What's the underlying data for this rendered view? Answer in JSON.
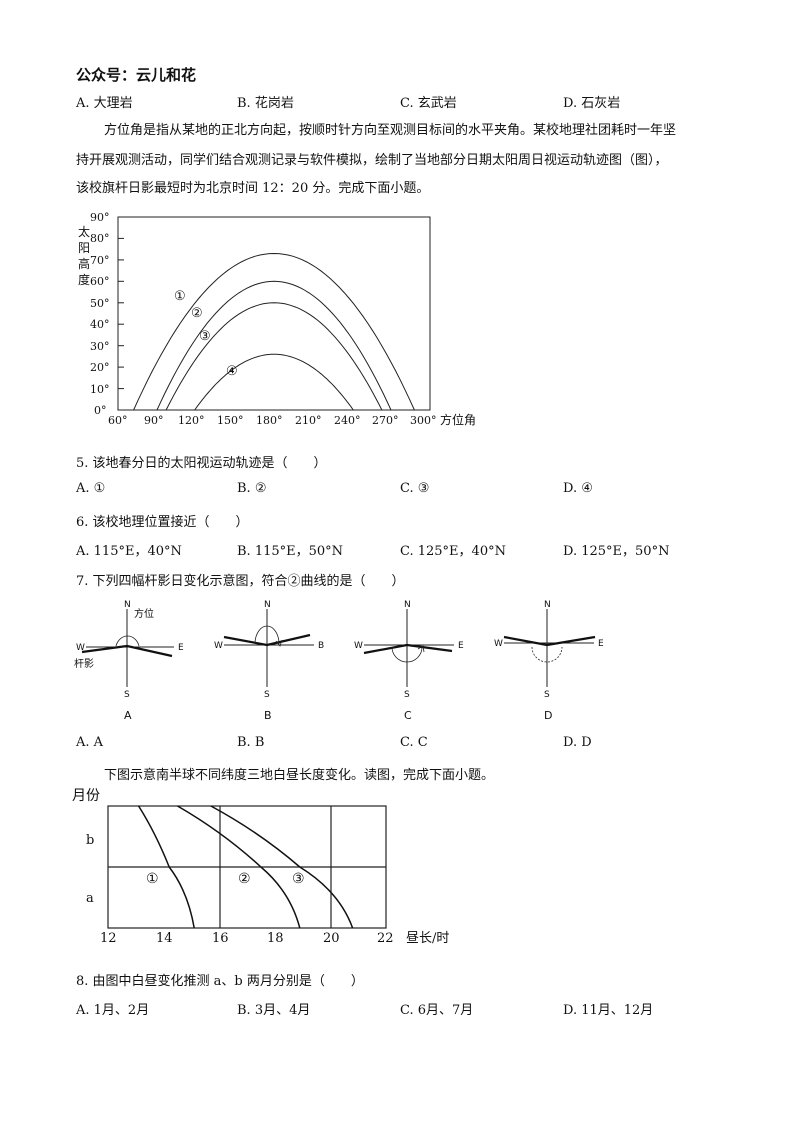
{
  "header": {
    "wechat": "公众号：云儿和花"
  },
  "q4_options": [
    "A. 大理岩",
    "B. 花岗岩",
    "C. 玄武岩",
    "D. 石灰岩"
  ],
  "intro1": {
    "line1": "方位角是指从某地的正北方向起，按顺时针方向至观测目标间的水平夹角。某校地理社团耗时一年坚",
    "line2": "持开展观测活动，同学们结合观测记录与软件模拟，绘制了当地部分日期太阳周日视运动轨迹图（图），",
    "line3": "该校旗杆日影最短时为北京时间 12：20 分。完成下面小题。"
  },
  "chart1": {
    "y_title": [
      "太",
      "阳",
      "高",
      "度"
    ],
    "y_ticks": [
      "90°",
      "80°",
      "70°",
      "60°",
      "50°",
      "40°",
      "30°",
      "20°",
      "10°",
      "0°"
    ],
    "x_ticks": [
      "60°",
      "90°",
      "120°",
      "150°",
      "180°",
      "210°",
      "240°",
      "270°",
      "300°"
    ],
    "x_title": "方位角",
    "curve_labels": [
      "①",
      "②",
      "③",
      "④"
    ]
  },
  "chart_data": [
    {
      "type": "line",
      "title": "",
      "ylabel": "太阳高度",
      "xlabel": "方位角",
      "xlim": [
        60,
        300
      ],
      "ylim": [
        0,
        90
      ],
      "series": [
        {
          "name": "①",
          "x": [
            72,
            126,
            180,
            234,
            288
          ],
          "y": [
            0,
            54,
            73,
            54,
            0
          ]
        },
        {
          "name": "②",
          "x": [
            90,
            135,
            180,
            225,
            270
          ],
          "y": [
            0,
            45,
            60,
            45,
            0
          ]
        },
        {
          "name": "③",
          "x": [
            97,
            138,
            180,
            222,
            263
          ],
          "y": [
            0,
            38,
            50,
            38,
            0
          ]
        },
        {
          "name": "④",
          "x": [
            119,
            150,
            180,
            210,
            241
          ],
          "y": [
            0,
            20,
            26,
            20,
            0
          ]
        }
      ]
    },
    {
      "type": "line",
      "title": "",
      "ylabel": "月份",
      "xlabel": "昼长/时",
      "xlim": [
        12,
        22
      ],
      "y_categories": [
        "a",
        "b"
      ],
      "series": [
        {
          "name": "①",
          "x": [
            13.1,
            14.2,
            15.1
          ],
          "y_level": [
            "start",
            "middle",
            "end"
          ]
        },
        {
          "name": "②",
          "x": [
            14.5,
            17.5,
            18.9
          ],
          "y_level": [
            "start",
            "middle",
            "end"
          ]
        },
        {
          "name": "③",
          "x": [
            15.7,
            18.9,
            20.8
          ],
          "y_level": [
            "start",
            "middle",
            "end"
          ]
        }
      ]
    }
  ],
  "q5": {
    "stem": "5. 该地春分日的太阳视运动轨迹是（　　）",
    "options": [
      "A. ①",
      "B. ②",
      "C. ③",
      "D. ④"
    ]
  },
  "q6": {
    "stem": "6. 该校地理位置接近（　　）",
    "options": [
      "A. 115°E，40°N",
      "B. 115°E，50°N",
      "C. 125°E，40°N",
      "D. 125°E，50°N"
    ]
  },
  "q7": {
    "stem": "7. 下列四幅杆影日变化示意图，符合②曲线的是（　　）",
    "labels": {
      "N": "N",
      "S": "S",
      "W": "W",
      "E": "E",
      "B_east": "B",
      "azimuth": "方位",
      "shadow": "杆影"
    },
    "figure_letters": [
      "A",
      "B",
      "C",
      "D"
    ],
    "options": [
      "A. A",
      "B. B",
      "C. C",
      "D. D"
    ]
  },
  "intro2": "下图示意南半球不同纬度三地白昼长度变化。读图，完成下面小题。",
  "chart2": {
    "y_title": "月份",
    "y_labels": [
      "b",
      "a"
    ],
    "x_ticks": [
      "12",
      "14",
      "16",
      "18",
      "20",
      "22"
    ],
    "x_title": "昼长/时",
    "curve_labels": [
      "①",
      "②",
      "③"
    ]
  },
  "q8": {
    "stem": "8. 由图中白昼变化推测 a、b 两月分别是（　　）",
    "options": [
      "A. 1月、2月",
      "B. 3月、4月",
      "C. 6月、7月",
      "D. 11月、12月"
    ]
  }
}
